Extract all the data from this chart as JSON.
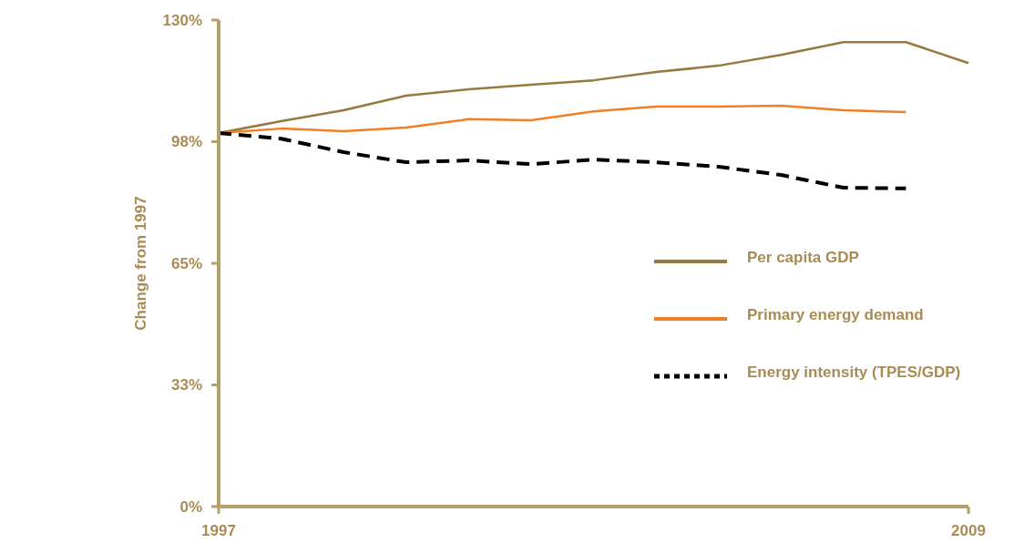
{
  "chart_data": {
    "type": "line",
    "ylabel": "Change from 1997",
    "x": [
      1997,
      1998,
      1999,
      2000,
      2001,
      2002,
      2003,
      2004,
      2005,
      2006,
      2007,
      2008,
      2009
    ],
    "xlim": [
      1997,
      2009
    ],
    "xticks": [
      1997,
      2009
    ],
    "ylim": [
      0,
      130
    ],
    "yticks": [
      {
        "value": 0,
        "label": "0%"
      },
      {
        "value": 32.5,
        "label": "33%"
      },
      {
        "value": 65,
        "label": "65%"
      },
      {
        "value": 97.5,
        "label": "98%"
      },
      {
        "value": 130,
        "label": "130%"
      }
    ],
    "grid": false,
    "legend": "right",
    "marker": "none",
    "series": [
      {
        "name": "Per capita GDP",
        "color": "#957a3e",
        "line_style": "solid",
        "values": [
          99.8,
          103.0,
          105.9,
          109.8,
          111.5,
          112.7,
          113.9,
          116.1,
          117.8,
          120.7,
          124.1,
          124.1,
          118.5
        ]
      },
      {
        "name": "Primary energy demand",
        "color": "#f07f26",
        "line_style": "solid",
        "values": [
          99.8,
          101.0,
          100.3,
          101.3,
          103.5,
          103.2,
          105.6,
          106.9,
          106.9,
          107.1,
          105.9,
          105.4,
          null
        ]
      },
      {
        "name": "Energy intensity (TPES/GDP)",
        "color": "#000000",
        "line_style": "dashed",
        "values": [
          99.8,
          98.3,
          94.7,
          92.0,
          92.5,
          91.5,
          92.7,
          92.0,
          90.8,
          88.6,
          85.2,
          85.0,
          null
        ]
      }
    ]
  }
}
